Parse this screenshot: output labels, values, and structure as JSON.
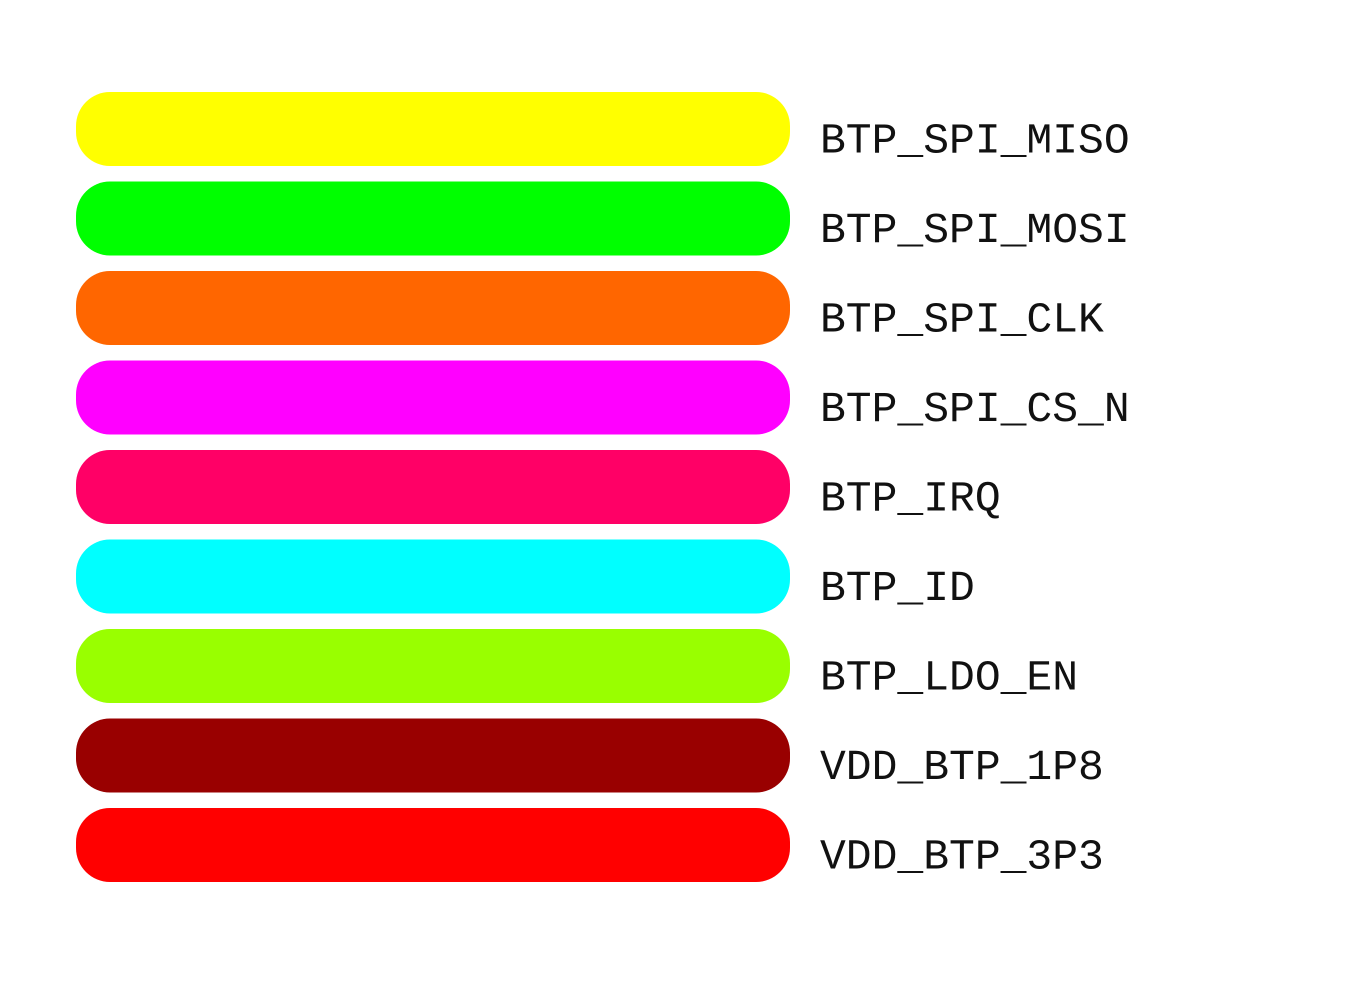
{
  "legend": {
    "items": [
      {
        "label": "BTP_SPI_MISO",
        "color": "#ffff00"
      },
      {
        "label": "BTP_SPI_MOSI",
        "color": "#00ff00"
      },
      {
        "label": "BTP_SPI_CLK",
        "color": "#ff6600"
      },
      {
        "label": "BTP_SPI_CS_N",
        "color": "#ff00ff"
      },
      {
        "label": "BTP_IRQ",
        "color": "#ff0066"
      },
      {
        "label": "BTP_ID",
        "color": "#00ffff"
      },
      {
        "label": "BTP_LDO_EN",
        "color": "#99ff00"
      },
      {
        "label": "VDD_BTP_1P8",
        "color": "#990000"
      },
      {
        "label": "VDD_BTP_3P3",
        "color": "#ff0000"
      }
    ]
  }
}
